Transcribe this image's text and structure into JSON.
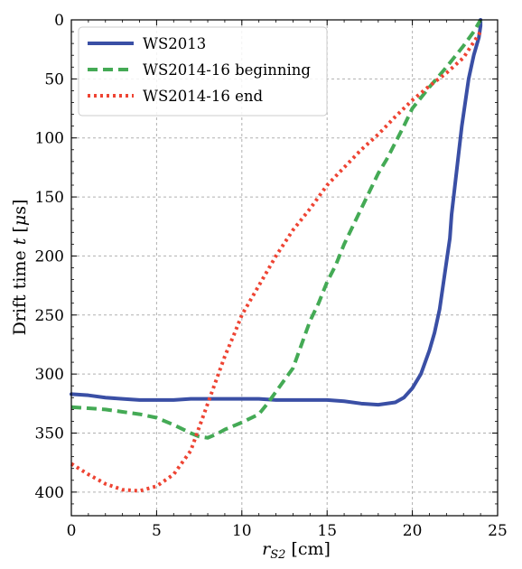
{
  "chart_data": {
    "type": "line",
    "xlabel": "r_S2 [cm]",
    "xlabel_main": "r",
    "xlabel_sub": "S2",
    "xlabel_unit": " [cm]",
    "ylabel": "Drift time t [μs]",
    "ylabel_pre": "Drift time ",
    "ylabel_var": "t",
    "ylabel_unit_open": " [",
    "ylabel_unit_mu": "μ",
    "ylabel_unit_close": "s]",
    "xlim": [
      0,
      25
    ],
    "ylim": [
      420,
      0
    ],
    "y_inverted": true,
    "grid": true,
    "legend_position": "top-left",
    "x_ticks": [
      "0",
      "5",
      "10",
      "15",
      "20",
      "25"
    ],
    "y_ticks": [
      "0",
      "50",
      "100",
      "150",
      "200",
      "250",
      "300",
      "350",
      "400"
    ],
    "series": [
      {
        "name": "WS2013",
        "color": "#3a4fa5",
        "style": "solid",
        "points": [
          [
            0,
            317
          ],
          [
            1,
            318
          ],
          [
            2,
            320
          ],
          [
            3,
            321
          ],
          [
            4,
            322
          ],
          [
            5,
            322
          ],
          [
            6,
            322
          ],
          [
            7,
            321
          ],
          [
            8,
            321
          ],
          [
            9,
            321
          ],
          [
            10,
            321
          ],
          [
            11,
            321
          ],
          [
            12,
            322
          ],
          [
            13,
            322
          ],
          [
            14,
            322
          ],
          [
            15,
            322
          ],
          [
            16,
            323
          ],
          [
            17,
            325
          ],
          [
            18,
            326
          ],
          [
            19,
            324
          ],
          [
            19.5,
            320
          ],
          [
            20,
            312
          ],
          [
            20.5,
            300
          ],
          [
            21,
            280
          ],
          [
            21.3,
            265
          ],
          [
            21.6,
            245
          ],
          [
            21.8,
            225
          ],
          [
            22.0,
            205
          ],
          [
            22.2,
            185
          ],
          [
            22.3,
            165
          ],
          [
            22.5,
            140
          ],
          [
            22.7,
            115
          ],
          [
            22.9,
            90
          ],
          [
            23.1,
            70
          ],
          [
            23.3,
            50
          ],
          [
            23.6,
            30
          ],
          [
            23.9,
            15
          ],
          [
            24.0,
            5
          ],
          [
            24.0,
            0
          ]
        ]
      },
      {
        "name": "WS2014-16 beginning",
        "color": "#44aa55",
        "style": "dashed",
        "points": [
          [
            0,
            328
          ],
          [
            1,
            329
          ],
          [
            2,
            330
          ],
          [
            3,
            332
          ],
          [
            4,
            334
          ],
          [
            5,
            337
          ],
          [
            6,
            343
          ],
          [
            7,
            350
          ],
          [
            7.5,
            353
          ],
          [
            8,
            354
          ],
          [
            8.5,
            351
          ],
          [
            9,
            347
          ],
          [
            10,
            341
          ],
          [
            11,
            334
          ],
          [
            11.5,
            325
          ],
          [
            12,
            315
          ],
          [
            12.5,
            305
          ],
          [
            13,
            295
          ],
          [
            13.5,
            275
          ],
          [
            14,
            255
          ],
          [
            14.5,
            240
          ],
          [
            15,
            222
          ],
          [
            15.5,
            208
          ],
          [
            16,
            190
          ],
          [
            16.5,
            175
          ],
          [
            17,
            160
          ],
          [
            17.5,
            145
          ],
          [
            18,
            130
          ],
          [
            18.5,
            118
          ],
          [
            19,
            104
          ],
          [
            19.5,
            90
          ],
          [
            20,
            75
          ],
          [
            21,
            57
          ],
          [
            22,
            40
          ],
          [
            23,
            22
          ],
          [
            23.6,
            10
          ],
          [
            24,
            0
          ]
        ]
      },
      {
        "name": "WS2014-16 end",
        "color": "#ee4433",
        "style": "dotted",
        "points": [
          [
            0,
            376
          ],
          [
            1,
            385
          ],
          [
            2,
            393
          ],
          [
            3,
            398
          ],
          [
            4,
            399
          ],
          [
            5,
            395
          ],
          [
            6,
            385
          ],
          [
            7,
            365
          ],
          [
            7.5,
            345
          ],
          [
            8,
            325
          ],
          [
            8.5,
            305
          ],
          [
            9,
            285
          ],
          [
            9.5,
            268
          ],
          [
            10,
            250
          ],
          [
            11,
            225
          ],
          [
            12,
            200
          ],
          [
            13,
            178
          ],
          [
            14,
            160
          ],
          [
            15,
            140
          ],
          [
            16,
            125
          ],
          [
            17,
            110
          ],
          [
            18,
            97
          ],
          [
            19,
            82
          ],
          [
            20,
            68
          ],
          [
            21,
            56
          ],
          [
            22,
            45
          ],
          [
            23,
            32
          ],
          [
            24,
            10
          ]
        ]
      }
    ]
  }
}
